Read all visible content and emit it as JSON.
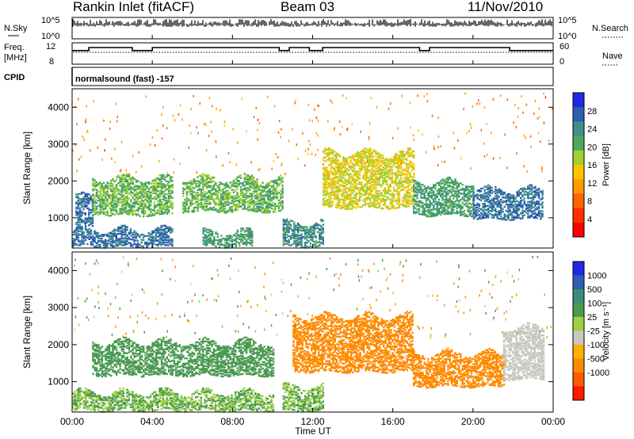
{
  "header": {
    "station": "Rankin Inlet (fitACF)",
    "beam": "Beam 03",
    "date": "11/Nov/2010"
  },
  "left_labels": {
    "nsky": "N.Sky",
    "nsky_hi": "10^5",
    "nsky_lo": "10^0",
    "freq_line1": "Freq.",
    "freq_line2": "[MHz]",
    "freq_hi": "12",
    "freq_lo": "8",
    "cpid": "CPID",
    "cpid_value": "normalsound (fast) -157"
  },
  "right_labels": {
    "nsearch": "N.Search",
    "nsearch_hi": "10^5",
    "nsearch_lo": "10^0",
    "nave": "Nave",
    "nave_hi": "60",
    "nave_lo": "0"
  },
  "colors": {
    "power_scale": [
      "#1e28e6",
      "#2f5fb0",
      "#3f8f86",
      "#4ca85a",
      "#9fd030",
      "#ffc400",
      "#ff9a00",
      "#ff6400",
      "#ff3000",
      "#ff0000"
    ],
    "velocity_scale": [
      "#1e28e6",
      "#2f5fb0",
      "#3e8a7c",
      "#4a9a52",
      "#9fd040",
      "#c8c8c0",
      "#ffb000",
      "#ff8a00",
      "#ff5a00",
      "#ff1a00"
    ]
  },
  "chart_data": [
    {
      "type": "line",
      "title": "N.Sky / N.Search",
      "ylim": [
        "10^0",
        "10^5"
      ],
      "x": [
        "00:00",
        "04:00",
        "08:00",
        "12:00",
        "16:00",
        "20:00",
        "00:00"
      ]
    },
    {
      "type": "line",
      "title": "Freq. [MHz] / Nave",
      "ylim": [
        8,
        12
      ],
      "nave_lim": [
        0,
        60
      ],
      "series": [
        {
          "name": "Freq. [MHz]",
          "points": [
            [
              "00:00",
              10.6
            ],
            [
              "00:50",
              10.6
            ],
            [
              "00:50",
              11.2
            ],
            [
              "03:00",
              11.2
            ],
            [
              "03:00",
              10.6
            ],
            [
              "04:00",
              10.6
            ],
            [
              "04:00",
              11.2
            ],
            [
              "10:20",
              11.2
            ],
            [
              "10:20",
              10.6
            ],
            [
              "10:50",
              10.6
            ],
            [
              "10:50",
              11.2
            ],
            [
              "11:50",
              11.2
            ],
            [
              "11:50",
              10.6
            ],
            [
              "12:30",
              10.6
            ],
            [
              "12:30",
              11.2
            ],
            [
              "17:20",
              11.2
            ],
            [
              "17:20",
              10.6
            ],
            [
              "17:50",
              10.6
            ],
            [
              "17:50",
              11.2
            ],
            [
              "21:50",
              11.2
            ],
            [
              "21:50",
              10.6
            ],
            [
              "24:00",
              10.6
            ]
          ]
        }
      ]
    },
    {
      "type": "heatmap",
      "title": "",
      "xlabel": "",
      "ylabel": "Slant Range [km]",
      "ylim": [
        180,
        4500
      ],
      "yticks": [
        1000,
        2000,
        3000,
        4000
      ],
      "colorbar": {
        "label": "Power [dB]",
        "ticks": [
          4,
          8,
          12,
          16,
          20,
          24,
          28
        ],
        "range": [
          0,
          32
        ]
      },
      "features": [
        {
          "t_start": "00:00",
          "t_end": "05:00",
          "range_km": [
            250,
            700
          ],
          "value_db": 26
        },
        {
          "t_start": "06:30",
          "t_end": "09:00",
          "range_km": [
            250,
            650
          ],
          "value_db": 22
        },
        {
          "t_start": "10:30",
          "t_end": "12:30",
          "range_km": [
            250,
            900
          ],
          "value_db": 24
        },
        {
          "t_start": "00:10",
          "t_end": "01:00",
          "range_km": [
            800,
            1600
          ],
          "value_db": 26
        },
        {
          "t_start": "01:00",
          "t_end": "05:00",
          "range_km": [
            1100,
            2100
          ],
          "value_db": 20
        },
        {
          "t_start": "05:30",
          "t_end": "10:30",
          "range_km": [
            1200,
            2100
          ],
          "value_db": 20
        },
        {
          "t_start": "12:30",
          "t_end": "17:00",
          "range_km": [
            1300,
            2800
          ],
          "value_db": 16
        },
        {
          "t_start": "17:00",
          "t_end": "20:00",
          "range_km": [
            1100,
            2000
          ],
          "value_db": 22
        },
        {
          "t_start": "20:00",
          "t_end": "23:30",
          "range_km": [
            1000,
            1800
          ],
          "value_db": 26
        }
      ]
    },
    {
      "type": "heatmap",
      "title": "",
      "xlabel": "Time UT",
      "ylabel": "Slant Range [km]",
      "ylim": [
        180,
        4500
      ],
      "yticks": [
        1000,
        2000,
        3000,
        4000
      ],
      "x_ticks": [
        "00:00",
        "04:00",
        "08:00",
        "12:00",
        "16:00",
        "20:00",
        "00:00"
      ],
      "colorbar": {
        "label": "Velocity [m s⁻¹]",
        "ticks": [
          1000,
          500,
          100,
          25,
          -25,
          -100,
          -500,
          -1000
        ]
      },
      "features": [
        {
          "t_start": "00:00",
          "t_end": "10:00",
          "range_km": [
            250,
            750
          ],
          "value_ms": 100
        },
        {
          "t_start": "10:30",
          "t_end": "12:30",
          "range_km": [
            250,
            900
          ],
          "value_ms": 100
        },
        {
          "t_start": "01:00",
          "t_end": "10:00",
          "range_km": [
            1200,
            2100
          ],
          "value_ms": 200
        },
        {
          "t_start": "11:00",
          "t_end": "17:00",
          "range_km": [
            1300,
            2800
          ],
          "value_ms": -300
        },
        {
          "t_start": "17:00",
          "t_end": "21:30",
          "range_km": [
            900,
            1800
          ],
          "value_ms": -200
        },
        {
          "t_start": "21:30",
          "t_end": "23:30",
          "range_km": [
            1100,
            2500
          ],
          "value_ms": 0
        }
      ]
    }
  ],
  "colorbar_power": {
    "label": "Power [dB]",
    "ticks": [
      "28",
      "24",
      "20",
      "16",
      "12",
      "8",
      "4"
    ]
  },
  "colorbar_velocity": {
    "label": "Velocity [m s⁻¹]",
    "ticks": [
      "1000",
      "500",
      "100",
      "25",
      "-25",
      "-100",
      "-500",
      "-1000"
    ]
  },
  "x_axis": {
    "ticks": [
      "00:00",
      "04:00",
      "08:00",
      "12:00",
      "16:00",
      "20:00",
      "00:00"
    ],
    "label": "Time UT"
  },
  "y_axis": {
    "label": "Slant Range [km]",
    "ticks": [
      "1000",
      "2000",
      "3000",
      "4000"
    ]
  }
}
